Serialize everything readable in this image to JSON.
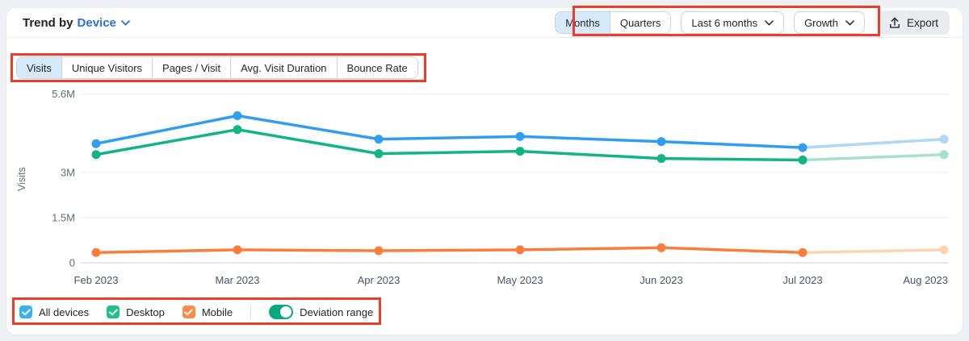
{
  "header": {
    "title_prefix": "Trend by",
    "title_dropdown": "Device",
    "period_tabs": [
      {
        "label": "Months",
        "selected": true
      },
      {
        "label": "Quarters",
        "selected": false
      }
    ],
    "range_dropdown": "Last 6 months",
    "metric_dropdown": "Growth",
    "export_label": "Export"
  },
  "metric_tabs": [
    {
      "label": "Visits",
      "selected": true
    },
    {
      "label": "Unique Visitors",
      "selected": false
    },
    {
      "label": "Pages / Visit",
      "selected": false
    },
    {
      "label": "Avg. Visit Duration",
      "selected": false
    },
    {
      "label": "Bounce Rate",
      "selected": false
    }
  ],
  "chart_data": {
    "type": "line",
    "title": "Trend by Device — Visits",
    "ylabel": "Visits",
    "xlabel": "",
    "x": [
      "Feb 2023",
      "Mar 2023",
      "Apr 2023",
      "May 2023",
      "Jun 2023",
      "Jul 2023",
      "Aug 2023"
    ],
    "series": [
      {
        "name": "All devices",
        "color": "#2f9df1",
        "faded_color": "#aed8f6",
        "values_M": [
          3.95,
          4.88,
          4.1,
          4.19,
          4.02,
          3.82,
          4.1
        ]
      },
      {
        "name": "Desktop",
        "color": "#10b583",
        "faded_color": "#a5e2cc",
        "values_M": [
          3.59,
          4.42,
          3.62,
          3.7,
          3.46,
          3.41,
          3.59
        ]
      },
      {
        "name": "Mobile",
        "color": "#fb7d3c",
        "faded_color": "#fcd4b5",
        "values_M": [
          0.34,
          0.43,
          0.4,
          0.43,
          0.5,
          0.34,
          0.43
        ]
      }
    ],
    "yticks": [
      {
        "label": "5.6M",
        "value_M": 5.6
      },
      {
        "label": "3M",
        "value_M": 3.0
      },
      {
        "label": "1.5M",
        "value_M": 1.5
      },
      {
        "label": "0",
        "value_M": 0
      }
    ],
    "ylim_M": [
      0,
      5.6
    ],
    "grid": "horizontal",
    "legend_position": "bottom-left",
    "faded_from_index": 5,
    "faded_note": "Jul 2023 → Aug 2023 segment and last point rendered faded (deviation range / incomplete month)"
  },
  "legend": {
    "items": [
      {
        "label": "All devices",
        "color": "#38b1f4",
        "checked": true
      },
      {
        "label": "Desktop",
        "color": "#1fc08c",
        "checked": true
      },
      {
        "label": "Mobile",
        "color": "#ff8a47",
        "checked": true
      }
    ],
    "toggle": {
      "label": "Deviation range",
      "on": true,
      "color": "#0ba77c"
    }
  },
  "annotations": {
    "color": "#ee3c26"
  }
}
